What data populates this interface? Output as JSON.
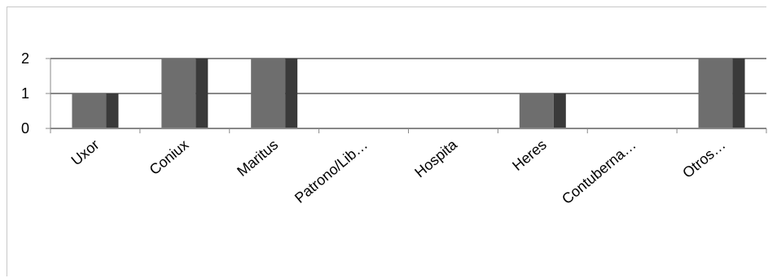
{
  "chart_data": {
    "type": "bar",
    "categories": [
      "Uxor",
      "Coniux",
      "Maritus",
      "Patrono/Lib…",
      "Hospita",
      "Heres",
      "Contuberna…",
      "Otros…"
    ],
    "values": [
      1,
      2,
      2,
      0,
      0,
      1,
      0,
      2
    ],
    "title": "",
    "xlabel": "",
    "ylabel": "",
    "ylim": [
      0,
      2
    ],
    "yticks": [
      "0",
      "1",
      "2"
    ],
    "grid": true,
    "legend": "none",
    "colors": {
      "bar_face": "#6e6e6e",
      "bar_side": "#3a3a3a",
      "gridline": "#888888",
      "axis": "#888888"
    }
  }
}
